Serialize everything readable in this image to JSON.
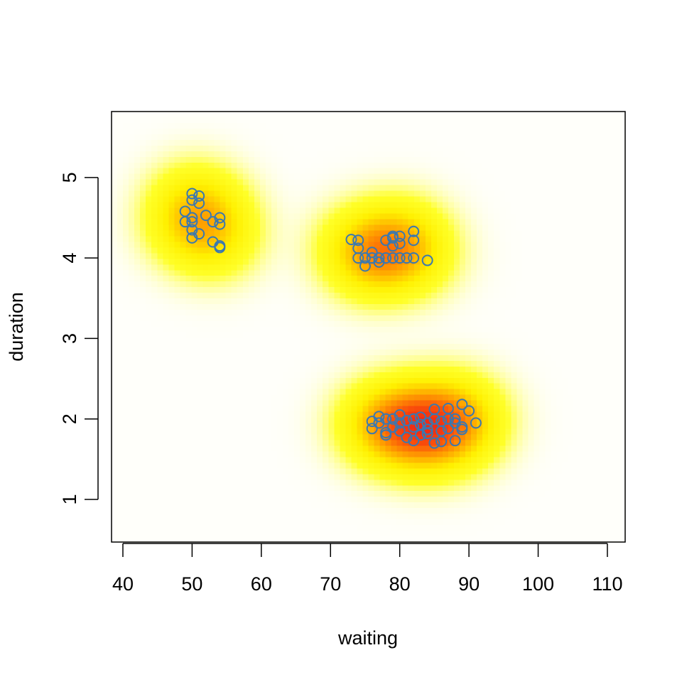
{
  "chart_data": {
    "type": "scatter",
    "x_label": "waiting",
    "y_label": "duration",
    "xlim": [
      38.36,
      112.57
    ],
    "ylim": [
      0.47,
      5.82
    ],
    "xticks": [
      40,
      50,
      60,
      70,
      80,
      90,
      100,
      110
    ],
    "yticks": [
      1,
      2,
      3,
      4,
      5
    ],
    "density_background": true,
    "series": [
      {
        "color": "#3a78b0",
        "x": [
          49,
          49,
          50,
          50,
          50,
          50,
          50,
          50,
          51,
          51,
          51,
          52,
          53,
          53,
          54,
          54,
          54,
          54,
          73,
          74,
          74,
          74,
          75,
          75,
          76,
          77,
          77,
          78,
          78,
          79,
          79,
          79,
          80,
          80,
          80,
          81,
          82,
          82,
          82,
          84,
          76,
          79,
          76,
          76,
          77,
          77,
          78,
          78,
          78,
          79,
          79,
          80,
          80,
          80,
          81,
          81,
          82,
          82,
          82,
          83,
          83,
          84,
          84,
          85,
          85,
          85,
          86,
          86,
          87,
          87,
          87,
          88,
          88,
          89,
          89,
          89,
          90,
          91,
          84,
          83,
          86,
          88
        ],
        "values": [
          4.58,
          4.45,
          4.8,
          4.72,
          4.5,
          4.45,
          4.35,
          4.25,
          4.77,
          4.68,
          4.3,
          4.53,
          4.45,
          4.2,
          4.5,
          4.42,
          4.15,
          4.13,
          4.23,
          4.22,
          4.12,
          4.0,
          4.0,
          3.9,
          4.07,
          3.95,
          4.0,
          4.0,
          4.22,
          4.27,
          4.25,
          4.15,
          4.27,
          4.18,
          4.0,
          4.0,
          4.33,
          4.22,
          4.0,
          3.97,
          4.0,
          4.0,
          1.97,
          1.88,
          2.03,
          1.95,
          2.0,
          1.83,
          1.8,
          2.0,
          1.9,
          2.05,
          1.95,
          1.85,
          1.98,
          1.77,
          2.0,
          1.9,
          1.73,
          2.02,
          1.93,
          1.95,
          1.87,
          2.12,
          2.0,
          1.7,
          1.72,
          1.97,
          2.13,
          2.0,
          1.88,
          1.95,
          1.73,
          2.18,
          1.87,
          1.9,
          2.1,
          1.95,
          1.82,
          1.8,
          1.85,
          2.0
        ]
      }
    ]
  }
}
